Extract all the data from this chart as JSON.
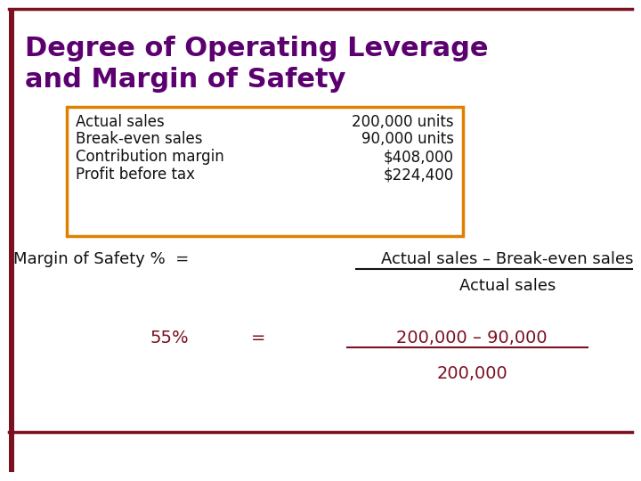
{
  "title_line1": "Degree of Operating Leverage",
  "title_line2": "and Margin of Safety",
  "title_color": "#5C0070",
  "bg_color": "#FFFFFF",
  "border_color": "#7B1020",
  "left_border_color": "#7B1020",
  "table_border_color": "#E08000",
  "table_labels": [
    "Actual sales",
    "Break-even sales",
    "Contribution margin",
    "Profit before tax"
  ],
  "table_values": [
    "200,000 units",
    "90,000 units",
    "$408,000",
    "$224,400"
  ],
  "table_text_color": "#111111",
  "formula_label": "Margin of Safety %  =",
  "formula_label_color": "#111111",
  "formula_numerator": "Actual sales – Break-even sales",
  "formula_denominator": "Actual sales",
  "formula_fraction_color": "#111111",
  "result_value": "55%",
  "result_color": "#7B1020",
  "result_num": "200,000 – 90,000",
  "result_den": "200,000",
  "result_fraction_color": "#7B1020",
  "bottom_line_color": "#7B1020",
  "title_fontsize": 22,
  "table_fontsize": 12,
  "formula_fontsize": 13,
  "result_fontsize": 14
}
